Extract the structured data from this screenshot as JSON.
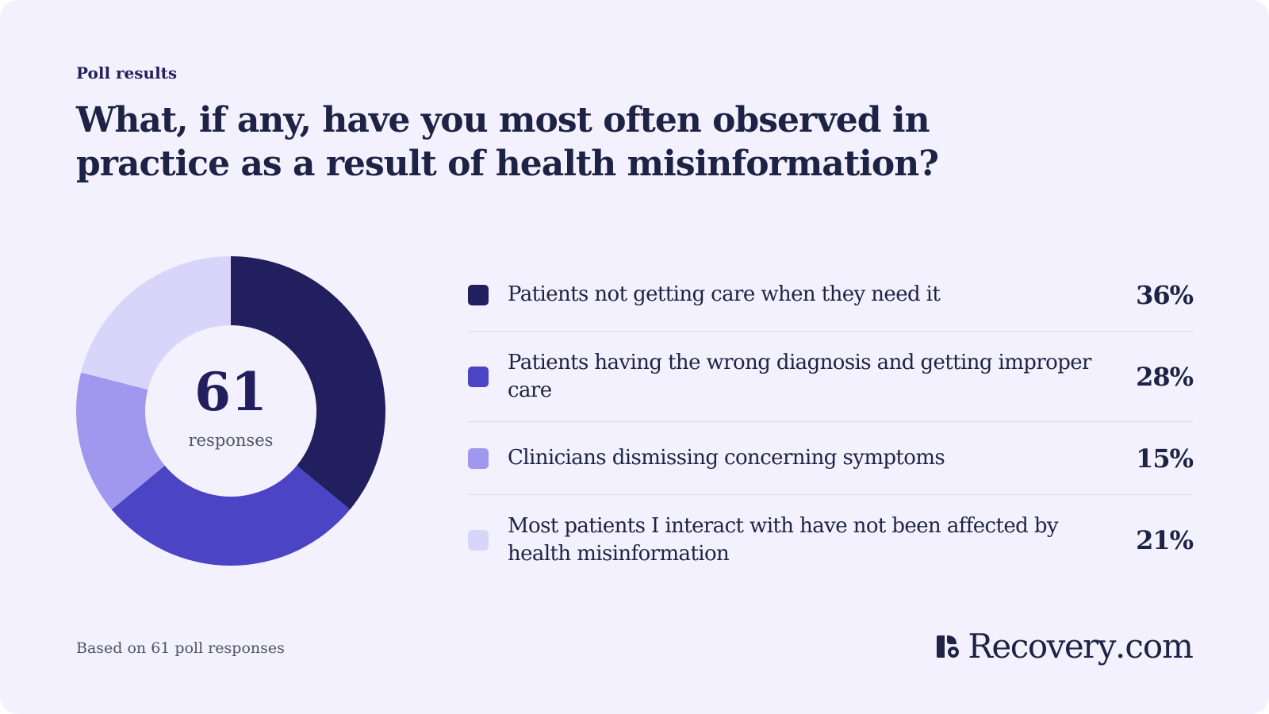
{
  "header": {
    "eyebrow": "Poll results",
    "title": "What, if any, have you most often observed in practice as a result of health misinformation?"
  },
  "donut_center": {
    "count": "61",
    "label": "responses"
  },
  "footer": {
    "note": "Based on 61 poll responses"
  },
  "brand": {
    "name": "Recovery",
    "suffix": ".com",
    "mark_icon": "recovery-logo-mark-icon"
  },
  "chart_data": {
    "type": "pie",
    "style": "donut",
    "categories": [
      "Patients not getting care when they need it",
      "Patients having the wrong diagnosis and getting improper care",
      "Clinicians dismissing concerning symptoms",
      "Most patients I interact with have not been affected by health misinformation"
    ],
    "values": [
      36,
      28,
      15,
      21
    ],
    "value_labels": [
      "36%",
      "28%",
      "15%",
      "21%"
    ],
    "colors": [
      "#221f5e",
      "#4b45c6",
      "#9f98ee",
      "#d9d5fa"
    ],
    "legend_position": "right"
  }
}
